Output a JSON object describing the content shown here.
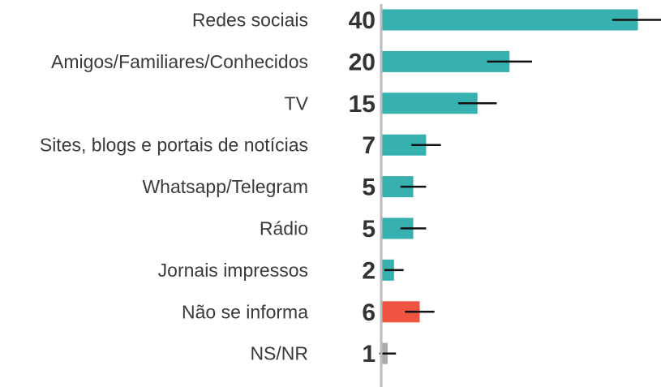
{
  "chart_data": {
    "type": "hbar",
    "categories": [
      "Redes sociais",
      "Amigos/Familiares/Conhecidos",
      "TV",
      "Sites, blogs e portais de notícias",
      "Whatsapp/Telegram",
      "Rádio",
      "Jornais impressos",
      "Não se informa",
      "NS/NR"
    ],
    "values": [
      40,
      20,
      15,
      7,
      5,
      5,
      2,
      6,
      1
    ],
    "errors": [
      4,
      3.5,
      3,
      2.3,
      2,
      2,
      1.5,
      2.3,
      1.3
    ],
    "colors": [
      "#36b1b0",
      "#36b1b0",
      "#36b1b0",
      "#36b1b0",
      "#36b1b0",
      "#36b1b0",
      "#36b1b0",
      "#ef5440",
      "#aaaaaa"
    ],
    "xlim": [
      0,
      43.6
    ]
  }
}
